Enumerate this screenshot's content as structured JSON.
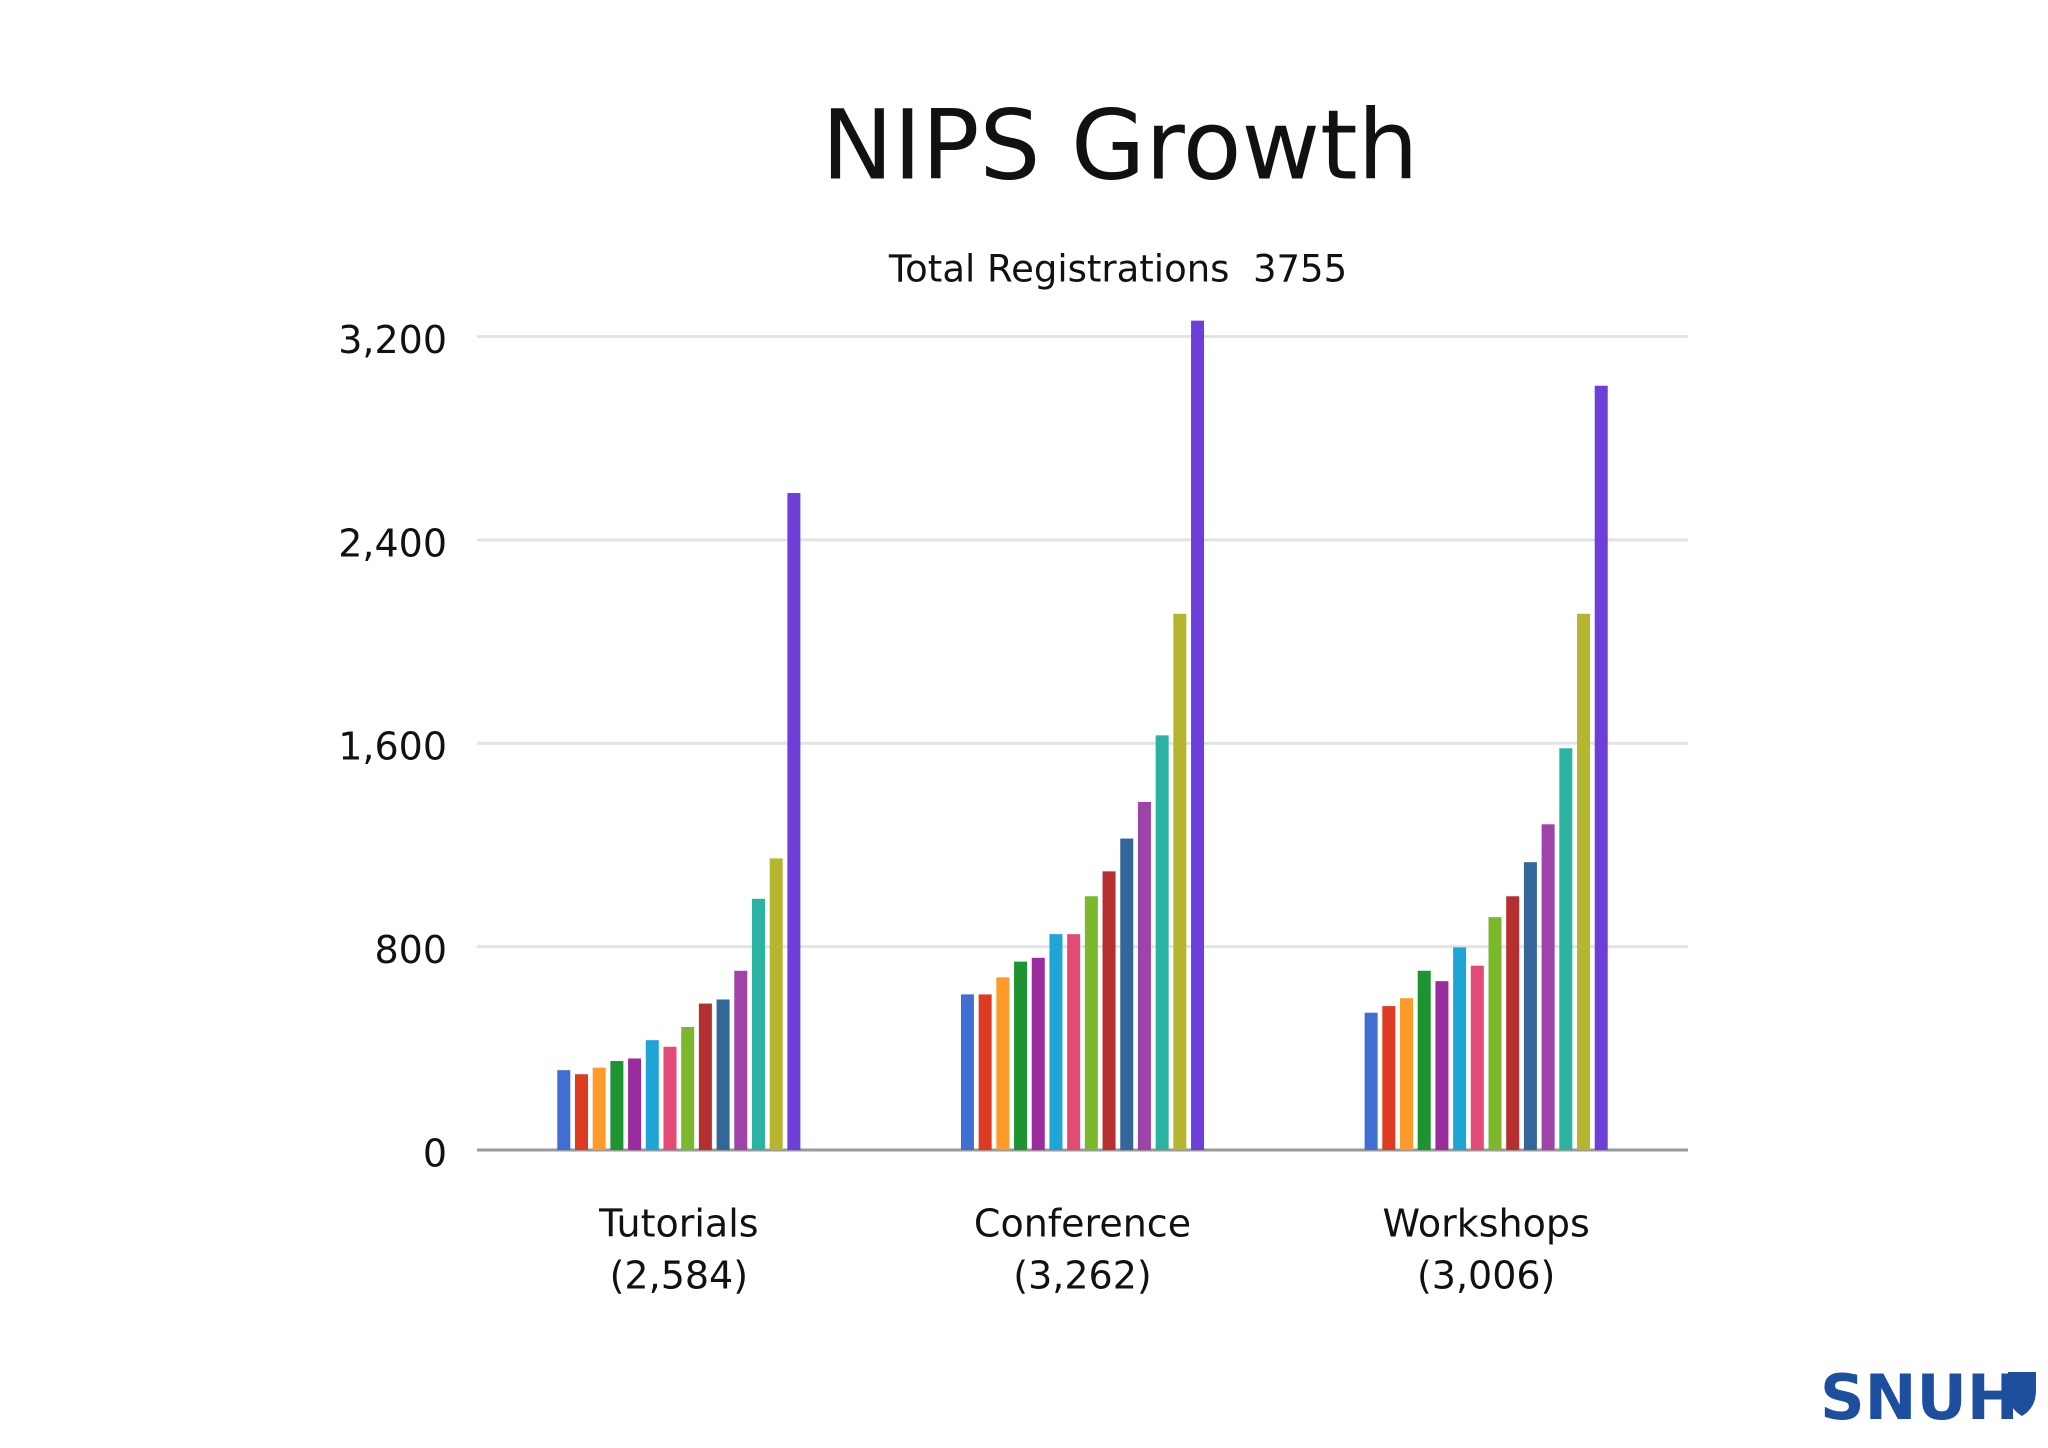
{
  "chart_data": {
    "type": "bar",
    "title": "NIPS Growth",
    "subtitle": "Total Registrations  3755",
    "categories": [
      [
        "Tutorials",
        "(2,584)"
      ],
      [
        "Conference",
        "(3,262)"
      ],
      [
        "Workshops",
        "(3,006)"
      ]
    ],
    "series": [
      {
        "color": "#3f6fd1",
        "values": [
          314,
          612,
          540
        ]
      },
      {
        "color": "#dc3b22",
        "values": [
          298,
          612,
          566
        ]
      },
      {
        "color": "#fd9a2a",
        "values": [
          324,
          679,
          597
        ]
      },
      {
        "color": "#1e9431",
        "values": [
          350,
          741,
          705
        ]
      },
      {
        "color": "#9a2c9d",
        "values": [
          360,
          756,
          664
        ]
      },
      {
        "color": "#1fa4d6",
        "values": [
          432,
          849,
          797
        ]
      },
      {
        "color": "#e34b76",
        "values": [
          406,
          849,
          725
        ]
      },
      {
        "color": "#7cb82d",
        "values": [
          484,
          998,
          916
        ]
      },
      {
        "color": "#b52e30",
        "values": [
          576,
          1096,
          998
        ]
      },
      {
        "color": "#336699",
        "values": [
          592,
          1225,
          1132
        ]
      },
      {
        "color": "#9e44a8",
        "values": [
          705,
          1369,
          1281
        ]
      },
      {
        "color": "#2ab3a0",
        "values": [
          988,
          1631,
          1580
        ]
      },
      {
        "color": "#b5b52f",
        "values": [
          1147,
          2109,
          2109
        ]
      },
      {
        "color": "#6d3ed8",
        "values": [
          2584,
          3262,
          3006
        ]
      }
    ],
    "ylim": [
      0,
      3300
    ],
    "yticks": [
      0,
      {
        "value": 800,
        "label": "800"
      },
      {
        "value": 1600,
        "label": "1,600"
      },
      {
        "value": 2400,
        "label": "2,400"
      },
      {
        "value": 3200,
        "label": "3,200"
      }
    ],
    "grid": true
  },
  "logo": "SNUH"
}
